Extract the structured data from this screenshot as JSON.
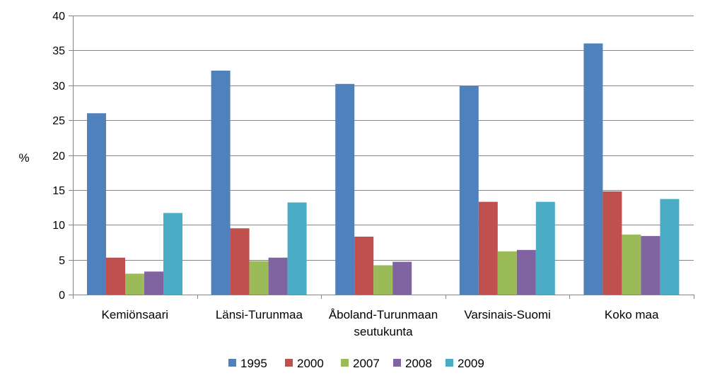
{
  "chart_data": {
    "type": "bar",
    "title": "",
    "xlabel": "",
    "ylabel": "%",
    "ylim": [
      0,
      40
    ],
    "yticks": [
      0,
      5,
      10,
      15,
      20,
      25,
      30,
      35,
      40
    ],
    "grid": true,
    "legend_position": "bottom",
    "categories": [
      [
        "Kemiönsaari"
      ],
      [
        "Länsi-Turunmaa"
      ],
      [
        "Åboland-Turunmaan",
        "seutukunta"
      ],
      [
        "Varsinais-Suomi"
      ],
      [
        "Koko maa"
      ]
    ],
    "series": [
      {
        "name": "1995",
        "color": "#4F81BD",
        "values": [
          26.0,
          32.1,
          30.2,
          29.9,
          36.0
        ]
      },
      {
        "name": "2000",
        "color": "#C0504D",
        "values": [
          5.3,
          9.5,
          8.3,
          13.3,
          14.8
        ]
      },
      {
        "name": "2007",
        "color": "#9BBB59",
        "values": [
          3.0,
          4.8,
          4.2,
          6.2,
          8.6
        ]
      },
      {
        "name": "2008",
        "color": "#8064A2",
        "values": [
          3.3,
          5.3,
          4.7,
          6.4,
          8.4
        ]
      },
      {
        "name": "2009",
        "color": "#4BACC6",
        "values": [
          11.7,
          13.2,
          null,
          13.3,
          13.7
        ]
      }
    ]
  }
}
